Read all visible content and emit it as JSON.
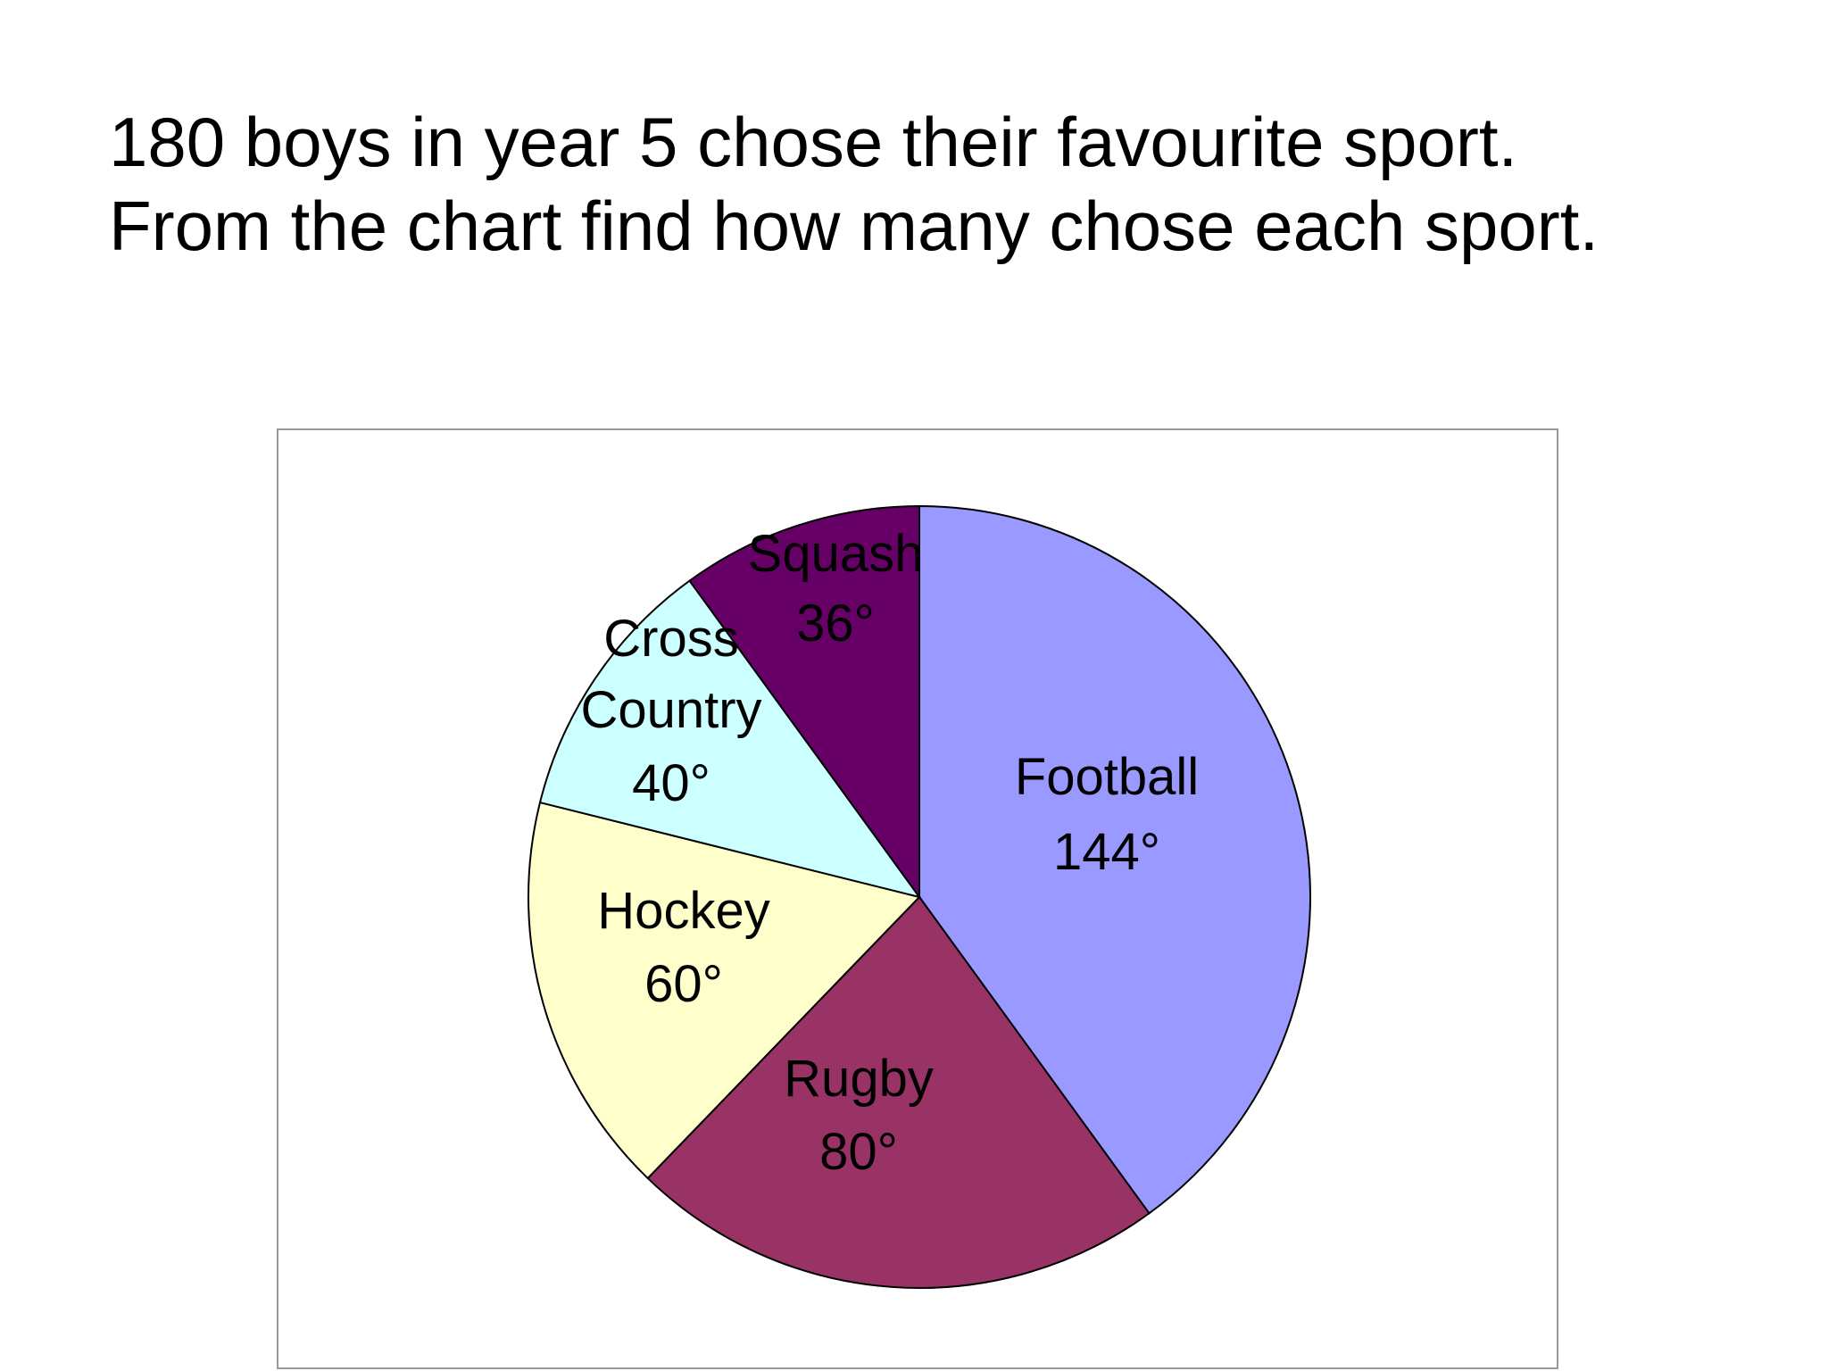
{
  "question": {
    "line1": "180 boys in year 5 chose their favourite sport.",
    "line2": "From the chart find how many chose each sport."
  },
  "chart_data": {
    "type": "pie",
    "unit": "°",
    "slices": [
      {
        "label": "Football",
        "value": 144,
        "value_label": "144°",
        "color": "#9999FF"
      },
      {
        "label": "Rugby",
        "value": 80,
        "value_label": "80°",
        "color": "#993366"
      },
      {
        "label": "Hockey",
        "value": 60,
        "value_label": "60°",
        "color": "#FFFFCC"
      },
      {
        "label": "Cross Country",
        "value": 40,
        "value_label": "40°",
        "color": "#CCFFFF"
      },
      {
        "label": "Squash",
        "value": 36,
        "value_label": "36°",
        "color": "#660066"
      }
    ]
  }
}
